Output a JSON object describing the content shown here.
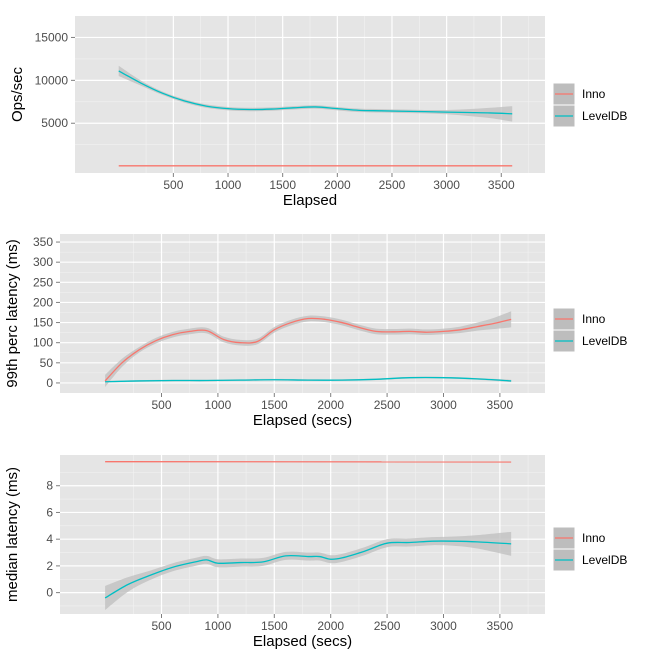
{
  "colors": {
    "panel_bg": "#e5e5e5",
    "grid": "#ffffff",
    "band": "#bdbdbd",
    "inno": "#f8766d",
    "leveldb": "#00bfc4"
  },
  "chart_data": [
    {
      "type": "line",
      "xlabel": "Elapsed",
      "ylabel": "Ops/sec",
      "xlim": [
        -400,
        3900
      ],
      "ylim": [
        -800,
        17500
      ],
      "xticks": [
        500,
        1000,
        1500,
        2000,
        2500,
        3000,
        3500
      ],
      "yticks": [
        5000,
        10000,
        15000
      ],
      "legend": {
        "position": "right",
        "entries": [
          "Inno",
          "LevelDB"
        ]
      },
      "series": [
        {
          "name": "Inno",
          "color": "#f8766d",
          "x": [
            0,
            3600
          ],
          "y": [
            40,
            40
          ],
          "band": [
            [
              0,
              0
            ],
            [
              0,
              0
            ]
          ]
        },
        {
          "name": "LevelDB",
          "color": "#00bfc4",
          "x": [
            0,
            200,
            400,
            600,
            800,
            1000,
            1200,
            1400,
            1600,
            1800,
            2000,
            2200,
            2400,
            2600,
            2800,
            3000,
            3200,
            3400,
            3600
          ],
          "y": [
            11100,
            9700,
            8500,
            7600,
            7000,
            6700,
            6600,
            6650,
            6800,
            6900,
            6700,
            6500,
            6450,
            6400,
            6350,
            6300,
            6250,
            6200,
            6100
          ],
          "band": [
            [
              600,
              600
            ],
            [
              300,
              300
            ],
            [
              200,
              200
            ],
            [
              200,
              200
            ],
            [
              200,
              200
            ],
            [
              200,
              200
            ],
            [
              200,
              200
            ],
            [
              200,
              200
            ],
            [
              200,
              200
            ],
            [
              200,
              200
            ],
            [
              200,
              200
            ],
            [
              200,
              200
            ],
            [
              200,
              200
            ],
            [
              200,
              200
            ],
            [
              200,
              200
            ],
            [
              250,
              250
            ],
            [
              400,
              400
            ],
            [
              600,
              600
            ],
            [
              900,
              900
            ]
          ]
        }
      ]
    },
    {
      "type": "line",
      "xlabel": "Elapsed (secs)",
      "ylabel": "99th perc latency (ms)",
      "xlim": [
        -400,
        3900
      ],
      "ylim": [
        -25,
        370
      ],
      "xticks": [
        500,
        1000,
        1500,
        2000,
        2500,
        3000,
        3500
      ],
      "yticks": [
        0,
        50,
        100,
        150,
        200,
        250,
        300,
        350
      ],
      "legend": {
        "position": "right",
        "entries": [
          "Inno",
          "LevelDB"
        ]
      },
      "series": [
        {
          "name": "Inno",
          "color": "#f8766d",
          "x": [
            0,
            150,
            300,
            450,
            600,
            750,
            900,
            1050,
            1200,
            1350,
            1500,
            1650,
            1800,
            1950,
            2100,
            2250,
            2400,
            2550,
            2700,
            2850,
            3000,
            3150,
            3300,
            3450,
            3600
          ],
          "y": [
            5,
            50,
            82,
            105,
            120,
            128,
            130,
            108,
            100,
            103,
            132,
            150,
            160,
            158,
            150,
            138,
            128,
            127,
            128,
            126,
            128,
            132,
            140,
            148,
            158
          ],
          "band": [
            [
              15,
              15
            ],
            [
              10,
              10
            ],
            [
              7,
              7
            ],
            [
              7,
              7
            ],
            [
              7,
              7
            ],
            [
              7,
              7
            ],
            [
              7,
              7
            ],
            [
              7,
              7
            ],
            [
              7,
              7
            ],
            [
              7,
              7
            ],
            [
              7,
              7
            ],
            [
              7,
              7
            ],
            [
              7,
              7
            ],
            [
              7,
              7
            ],
            [
              7,
              7
            ],
            [
              7,
              7
            ],
            [
              7,
              7
            ],
            [
              7,
              7
            ],
            [
              7,
              7
            ],
            [
              7,
              7
            ],
            [
              7,
              7
            ],
            [
              8,
              8
            ],
            [
              10,
              10
            ],
            [
              14,
              14
            ],
            [
              20,
              20
            ]
          ]
        },
        {
          "name": "LevelDB",
          "color": "#00bfc4",
          "x": [
            0,
            300,
            600,
            900,
            1200,
            1500,
            1800,
            2100,
            2400,
            2700,
            3000,
            3300,
            3600
          ],
          "y": [
            3,
            5,
            6,
            6,
            7,
            8,
            7,
            7,
            9,
            13,
            13,
            10,
            5
          ],
          "band": [
            [
              2,
              2
            ],
            [
              2,
              2
            ],
            [
              2,
              2
            ],
            [
              2,
              2
            ],
            [
              2,
              2
            ],
            [
              2,
              2
            ],
            [
              2,
              2
            ],
            [
              2,
              2
            ],
            [
              2,
              2
            ],
            [
              2,
              2
            ],
            [
              2,
              2
            ],
            [
              2,
              2
            ],
            [
              3,
              3
            ]
          ]
        }
      ]
    },
    {
      "type": "line",
      "xlabel": "Elapsed (secs)",
      "ylabel": "median latency (ms)",
      "xlim": [
        -400,
        3900
      ],
      "ylim": [
        -1.6,
        10.3
      ],
      "xticks": [
        500,
        1000,
        1500,
        2000,
        2500,
        3000,
        3500
      ],
      "yticks": [
        0,
        2,
        4,
        6,
        8
      ],
      "legend": {
        "position": "right",
        "entries": [
          "Inno",
          "LevelDB"
        ]
      },
      "series": [
        {
          "name": "Inno",
          "color": "#f8766d",
          "x": [
            0,
            3600
          ],
          "y": [
            9.8,
            9.78
          ],
          "band": [
            [
              0,
              0
            ],
            [
              0,
              0
            ]
          ]
        },
        {
          "name": "LevelDB",
          "color": "#00bfc4",
          "x": [
            0,
            200,
            400,
            600,
            800,
            900,
            1000,
            1200,
            1400,
            1600,
            1800,
            1900,
            2000,
            2100,
            2300,
            2500,
            2700,
            2900,
            3100,
            3300,
            3600
          ],
          "y": [
            -0.4,
            0.6,
            1.3,
            1.9,
            2.3,
            2.45,
            2.2,
            2.25,
            2.3,
            2.75,
            2.7,
            2.7,
            2.5,
            2.6,
            3.1,
            3.7,
            3.75,
            3.85,
            3.85,
            3.8,
            3.65
          ],
          "band": [
            [
              0.9,
              0.9
            ],
            [
              0.55,
              0.55
            ],
            [
              0.35,
              0.35
            ],
            [
              0.3,
              0.3
            ],
            [
              0.3,
              0.3
            ],
            [
              0.3,
              0.3
            ],
            [
              0.3,
              0.3
            ],
            [
              0.3,
              0.3
            ],
            [
              0.3,
              0.3
            ],
            [
              0.3,
              0.3
            ],
            [
              0.3,
              0.3
            ],
            [
              0.3,
              0.3
            ],
            [
              0.3,
              0.3
            ],
            [
              0.3,
              0.3
            ],
            [
              0.3,
              0.3
            ],
            [
              0.3,
              0.3
            ],
            [
              0.3,
              0.3
            ],
            [
              0.3,
              0.3
            ],
            [
              0.35,
              0.35
            ],
            [
              0.5,
              0.5
            ],
            [
              0.9,
              0.9
            ]
          ]
        }
      ]
    }
  ]
}
